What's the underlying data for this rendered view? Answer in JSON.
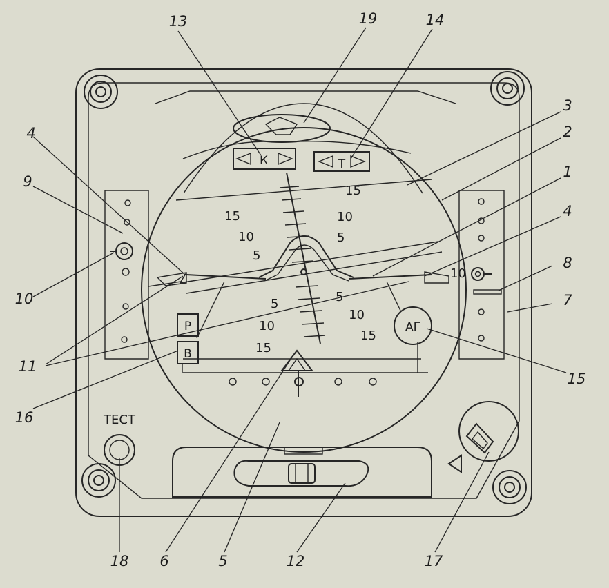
{
  "callouts": {
    "c1": "1",
    "c2": "2",
    "c3": "3",
    "c4a": "4",
    "c4b": "4",
    "c5": "5",
    "c6": "6",
    "c7": "7",
    "c8": "8",
    "c9": "9",
    "c10a": "10",
    "c10b": "10",
    "c11": "11",
    "c12": "12",
    "c13": "13",
    "c14": "14",
    "c15": "15",
    "c16": "16",
    "c17": "17",
    "c18": "18",
    "c19": "19"
  },
  "pitch_scale": {
    "top_15": "15",
    "top_15_right": "15",
    "top_10": "10",
    "top_10_right": "10",
    "top_5": "5",
    "top_5_right": "5",
    "bot_5": "5",
    "bot_5_right": "5",
    "bot_10": "10",
    "bot_10_right": "10",
    "bot_15": "15",
    "bot_15_right": "15"
  },
  "indicators": {
    "course_flag": "К",
    "t_flag": "Т",
    "ag_flag": "АГ",
    "r_flag": "Р",
    "v_flag": "В",
    "side_10": "10",
    "test_label": "ТЕСТ"
  }
}
